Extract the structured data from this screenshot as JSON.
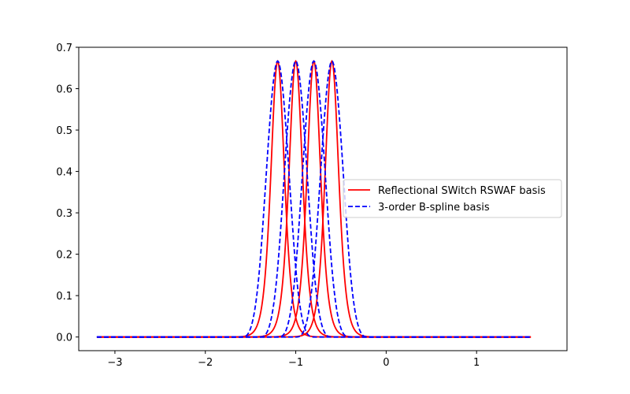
{
  "chart_data": {
    "type": "line",
    "title": "",
    "xlabel": "",
    "ylabel": "",
    "xlim": [
      -3.4,
      2.0
    ],
    "ylim": [
      -0.033,
      0.7
    ],
    "x_ticks": [
      -3,
      -2,
      -1,
      0,
      1
    ],
    "x_tick_labels": [
      "−3",
      "−2",
      "−1",
      "0",
      "1"
    ],
    "y_ticks": [
      0.0,
      0.1,
      0.2,
      0.3,
      0.4,
      0.5,
      0.6,
      0.7
    ],
    "y_tick_labels": [
      "0.0",
      "0.1",
      "0.2",
      "0.3",
      "0.4",
      "0.5",
      "0.6",
      "0.7"
    ],
    "grid": false,
    "legend_position": "center-right",
    "x_domain": [
      -3.2,
      1.6
    ],
    "basis_centers": [
      -1.2,
      -1.0,
      -0.8,
      -0.6
    ],
    "peak_value": 0.6667,
    "series": [
      {
        "name": "Reflectional SWitch RSWAF basis",
        "style": "solid",
        "color": "#ff0000",
        "kind": "rswaf",
        "curves": [
          {
            "center": -1.2,
            "points": [
              [
                -3.2,
                0
              ],
              [
                -1.6,
                0
              ],
              [
                -1.5,
                0.005
              ],
              [
                -1.4,
                0.07
              ],
              [
                -1.3,
                0.38
              ],
              [
                -1.25,
                0.56
              ],
              [
                -1.2,
                0.667
              ],
              [
                -1.15,
                0.56
              ],
              [
                -1.1,
                0.38
              ],
              [
                -1.0,
                0.07
              ],
              [
                -0.9,
                0.005
              ],
              [
                -0.8,
                0
              ],
              [
                1.6,
                0
              ]
            ]
          },
          {
            "center": -1.0,
            "points": [
              [
                -3.2,
                0
              ],
              [
                -1.4,
                0
              ],
              [
                -1.3,
                0.005
              ],
              [
                -1.2,
                0.07
              ],
              [
                -1.1,
                0.38
              ],
              [
                -1.05,
                0.56
              ],
              [
                -1.0,
                0.667
              ],
              [
                -0.95,
                0.56
              ],
              [
                -0.9,
                0.38
              ],
              [
                -0.8,
                0.07
              ],
              [
                -0.7,
                0.005
              ],
              [
                -0.6,
                0
              ],
              [
                1.6,
                0
              ]
            ]
          },
          {
            "center": -0.8,
            "points": [
              [
                -3.2,
                0
              ],
              [
                -1.2,
                0
              ],
              [
                -1.1,
                0.005
              ],
              [
                -1.0,
                0.07
              ],
              [
                -0.9,
                0.38
              ],
              [
                -0.85,
                0.56
              ],
              [
                -0.8,
                0.667
              ],
              [
                -0.75,
                0.56
              ],
              [
                -0.7,
                0.38
              ],
              [
                -0.6,
                0.07
              ],
              [
                -0.5,
                0.005
              ],
              [
                -0.4,
                0
              ],
              [
                1.6,
                0
              ]
            ]
          },
          {
            "center": -0.6,
            "points": [
              [
                -3.2,
                0
              ],
              [
                -1.0,
                0
              ],
              [
                -0.9,
                0.005
              ],
              [
                -0.8,
                0.07
              ],
              [
                -0.7,
                0.38
              ],
              [
                -0.65,
                0.56
              ],
              [
                -0.6,
                0.667
              ],
              [
                -0.55,
                0.56
              ],
              [
                -0.5,
                0.38
              ],
              [
                -0.4,
                0.07
              ],
              [
                -0.3,
                0.005
              ],
              [
                -0.2,
                0
              ],
              [
                1.6,
                0
              ]
            ]
          }
        ]
      },
      {
        "name": "3-order B-spline basis",
        "style": "dashed",
        "color": "#0000ff",
        "kind": "bspline",
        "curves": [
          {
            "center": -1.2,
            "points": [
              [
                -3.2,
                0
              ],
              [
                -1.6,
                0
              ],
              [
                -1.5,
                0.021
              ],
              [
                -1.4,
                0.167
              ],
              [
                -1.3,
                0.479
              ],
              [
                -1.2,
                0.667
              ],
              [
                -1.1,
                0.479
              ],
              [
                -1.0,
                0.167
              ],
              [
                -0.9,
                0.021
              ],
              [
                -0.8,
                0
              ],
              [
                1.6,
                0
              ]
            ]
          },
          {
            "center": -1.0,
            "points": [
              [
                -3.2,
                0
              ],
              [
                -1.4,
                0
              ],
              [
                -1.3,
                0.021
              ],
              [
                -1.2,
                0.167
              ],
              [
                -1.1,
                0.479
              ],
              [
                -1.0,
                0.667
              ],
              [
                -0.9,
                0.479
              ],
              [
                -0.8,
                0.167
              ],
              [
                -0.7,
                0.021
              ],
              [
                -0.6,
                0
              ],
              [
                1.6,
                0
              ]
            ]
          },
          {
            "center": -0.8,
            "points": [
              [
                -3.2,
                0
              ],
              [
                -1.2,
                0
              ],
              [
                -1.1,
                0.021
              ],
              [
                -1.0,
                0.167
              ],
              [
                -0.9,
                0.479
              ],
              [
                -0.8,
                0.667
              ],
              [
                -0.7,
                0.479
              ],
              [
                -0.6,
                0.167
              ],
              [
                -0.5,
                0.021
              ],
              [
                -0.4,
                0
              ],
              [
                1.6,
                0
              ]
            ]
          },
          {
            "center": -0.6,
            "points": [
              [
                -3.2,
                0
              ],
              [
                -1.0,
                0
              ],
              [
                -0.9,
                0.021
              ],
              [
                -0.8,
                0.167
              ],
              [
                -0.7,
                0.479
              ],
              [
                -0.6,
                0.667
              ],
              [
                -0.5,
                0.479
              ],
              [
                -0.4,
                0.167
              ],
              [
                -0.3,
                0.021
              ],
              [
                -0.2,
                0
              ],
              [
                1.6,
                0
              ]
            ]
          }
        ]
      }
    ]
  }
}
